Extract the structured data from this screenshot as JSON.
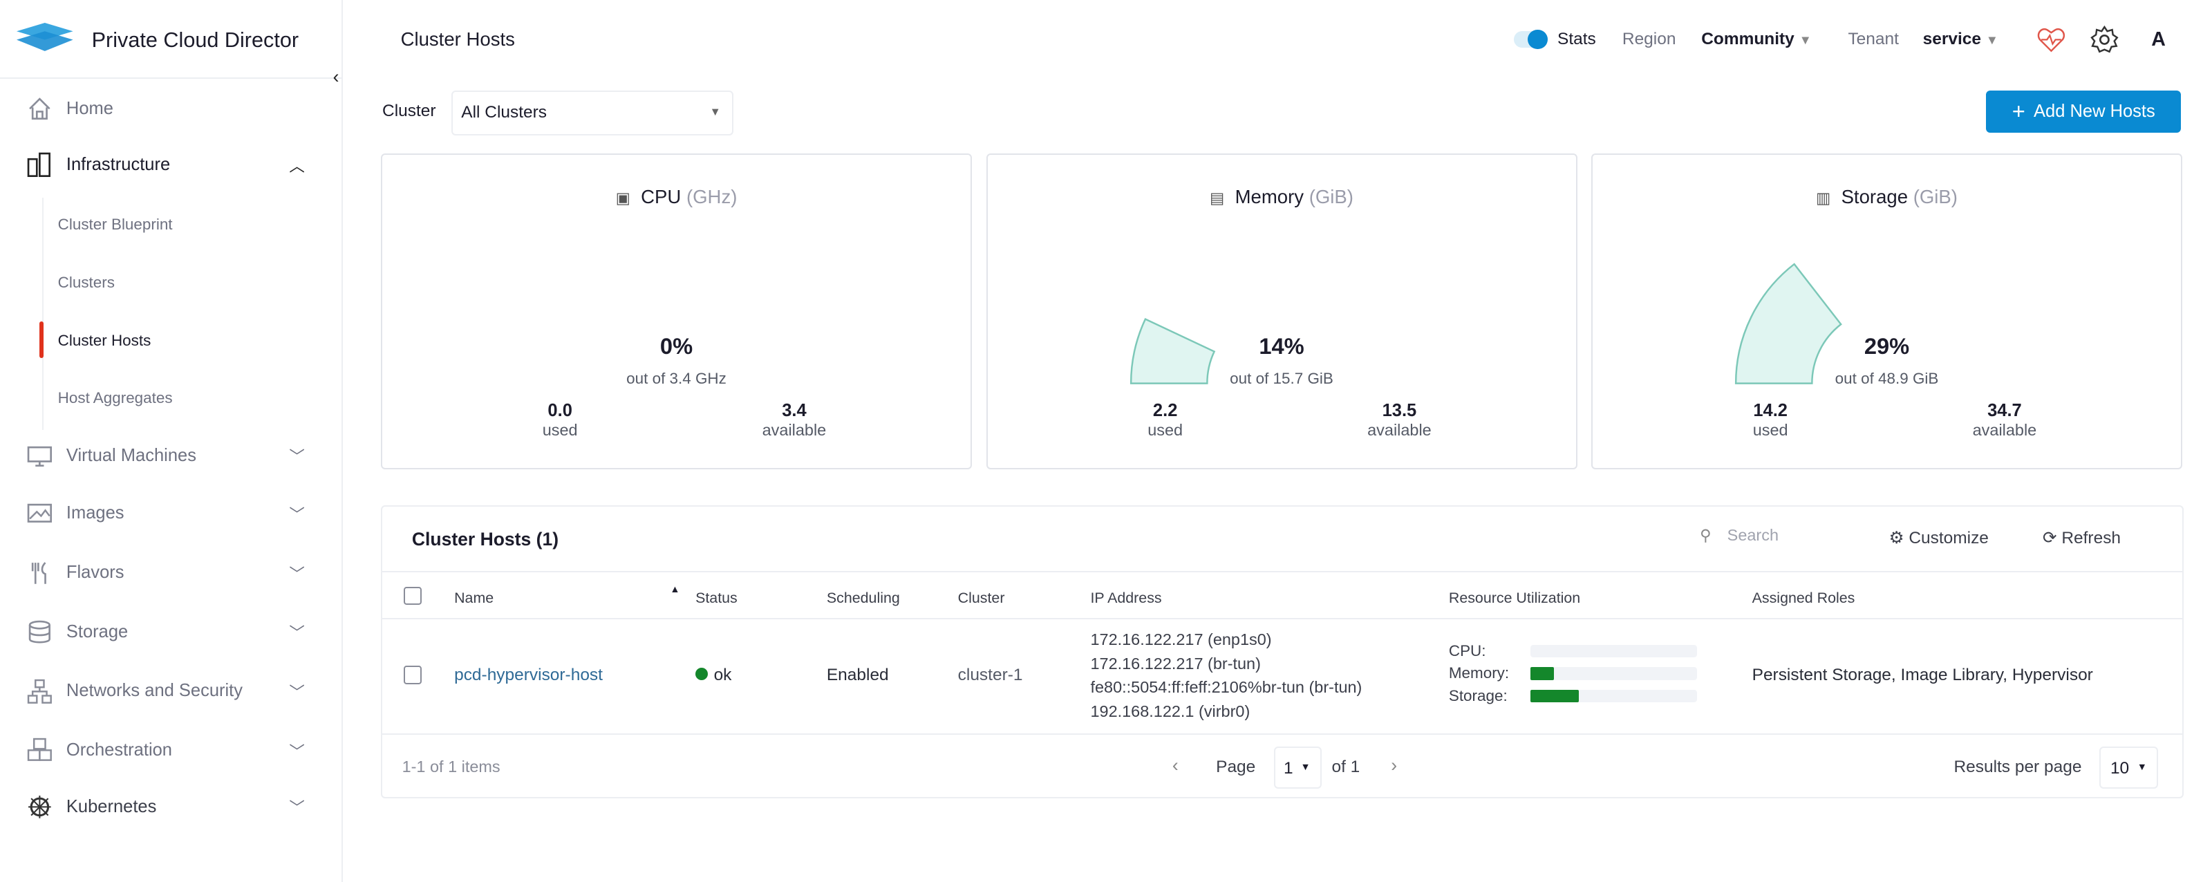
{
  "app": {
    "title": "Private Cloud Director",
    "page_title": "Cluster Hosts"
  },
  "header": {
    "stats_label": "Stats",
    "stats_on": true,
    "region_label": "Region",
    "region_value": "Community",
    "tenant_label": "Tenant",
    "tenant_value": "service",
    "avatar": "A",
    "icons": [
      "heart-pulse-icon",
      "gear-icon"
    ]
  },
  "sidebar": {
    "items": [
      {
        "label": "Home",
        "icon": "home-icon"
      },
      {
        "label": "Infrastructure",
        "icon": "server-icon",
        "expanded": true,
        "children": [
          {
            "label": "Cluster Blueprint"
          },
          {
            "label": "Clusters"
          },
          {
            "label": "Cluster Hosts",
            "active": true
          },
          {
            "label": "Host Aggregates"
          }
        ]
      },
      {
        "label": "Virtual Machines",
        "icon": "monitor-icon"
      },
      {
        "label": "Images",
        "icon": "image-icon"
      },
      {
        "label": "Flavors",
        "icon": "flavors-icon"
      },
      {
        "label": "Storage",
        "icon": "database-icon"
      },
      {
        "label": "Networks and Security",
        "icon": "network-icon"
      },
      {
        "label": "Orchestration",
        "icon": "cubes-icon"
      },
      {
        "label": "Kubernetes",
        "icon": "kubernetes-icon"
      }
    ]
  },
  "filter": {
    "label": "Cluster",
    "value": "All Clusters"
  },
  "add_button": "Add New Hosts",
  "cards": [
    {
      "title": "CPU",
      "unit": "(GHz)",
      "percent": "0%",
      "percent_value": 0,
      "out_of": "out of 3.4 GHz",
      "used": "0.0",
      "used_label": "used",
      "available": "3.4",
      "available_label": "available"
    },
    {
      "title": "Memory",
      "unit": "(GiB)",
      "percent": "14%",
      "percent_value": 14,
      "out_of": "out of 15.7 GiB",
      "used": "2.2",
      "used_label": "used",
      "available": "13.5",
      "available_label": "available"
    },
    {
      "title": "Storage",
      "unit": "(GiB)",
      "percent": "29%",
      "percent_value": 29,
      "out_of": "out of 48.9 GiB",
      "used": "14.2",
      "used_label": "used",
      "available": "34.7",
      "available_label": "available"
    }
  ],
  "table": {
    "title": "Cluster Hosts (1)",
    "search_placeholder": "Search",
    "customize": "Customize",
    "refresh": "Refresh",
    "columns": [
      "Name",
      "Status",
      "Scheduling",
      "Cluster",
      "IP Address",
      "Resource Utilization",
      "Assigned Roles"
    ],
    "rows": [
      {
        "name": "pcd-hypervisor-host",
        "status": "ok",
        "scheduling": "Enabled",
        "cluster": "cluster-1",
        "ips": [
          "172.16.122.217 (enp1s0)",
          "172.16.122.217 (br-tun)",
          "fe80::5054:ff:feff:2106%br-tun (br-tun)",
          "192.168.122.1 (virbr0)"
        ],
        "util": {
          "cpu_label": "CPU:",
          "cpu": 0,
          "memory_label": "Memory:",
          "memory": 14,
          "storage_label": "Storage:",
          "storage": 29
        },
        "roles": "Persistent Storage, Image Library, Hypervisor"
      }
    ],
    "footer": {
      "count": "1-1 of 1 items",
      "page_label": "Page",
      "page": "1",
      "of": "of 1",
      "rpp_label": "Results per page",
      "rpp": "10"
    }
  },
  "colors": {
    "accent": "#0a8ad2",
    "active_marker": "#e0321c",
    "ok": "#14872b",
    "gauge": "#e0f5f1",
    "gauge_stroke": "#7cc8b8"
  }
}
